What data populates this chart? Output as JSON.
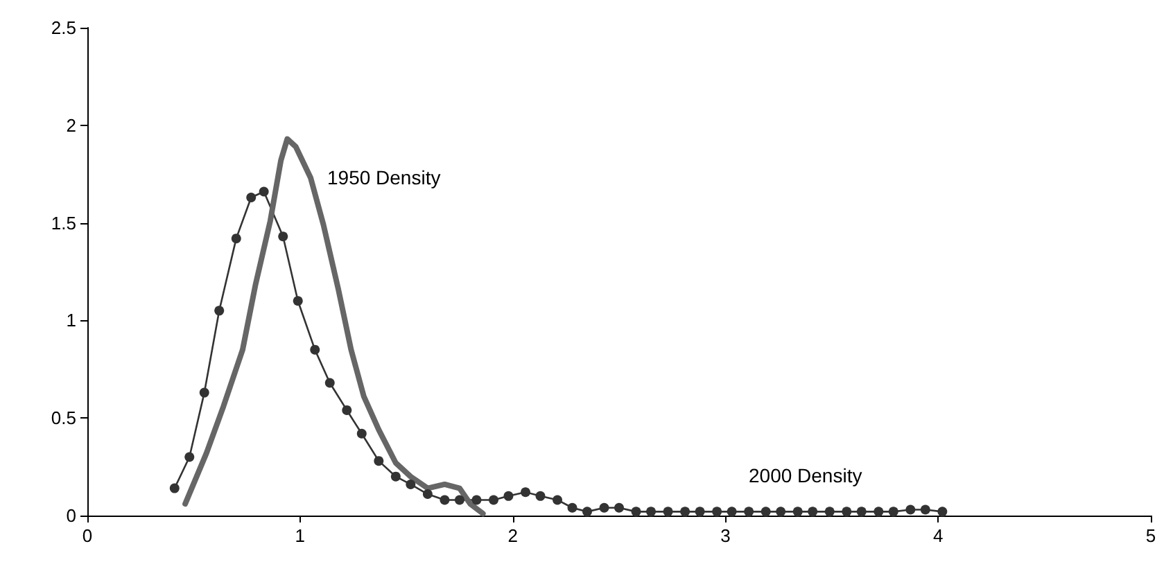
{
  "chart_data": {
    "type": "line",
    "xlim": [
      0,
      5
    ],
    "xticks": [
      0,
      1,
      2,
      3,
      4,
      5
    ],
    "ylim": [
      0,
      2.5
    ],
    "yticks": [
      0,
      0.5,
      1,
      1.5,
      2,
      2.5
    ],
    "grid": false,
    "series": [
      {
        "color": "#333333",
        "marker": "circle",
        "x": [
          0.41,
          0.48,
          0.55,
          0.62,
          0.7,
          0.77,
          0.83,
          0.92,
          0.99,
          1.07,
          1.14,
          1.22,
          1.29,
          1.37,
          1.45,
          1.52,
          1.6,
          1.68,
          1.75,
          1.83,
          1.91,
          1.98,
          2.06,
          2.13,
          2.21,
          2.28,
          2.35,
          2.43,
          2.5,
          2.58,
          2.65,
          2.73,
          2.81,
          2.88,
          2.96,
          3.03,
          3.11,
          3.19,
          3.26,
          3.34,
          3.41,
          3.49,
          3.57,
          3.64,
          3.72,
          3.79,
          3.87,
          3.94,
          4.02
        ],
        "values": [
          0.14,
          0.3,
          0.63,
          1.05,
          1.42,
          1.63,
          1.66,
          1.43,
          1.1,
          0.85,
          0.68,
          0.54,
          0.42,
          0.28,
          0.2,
          0.16,
          0.11,
          0.08,
          0.08,
          0.08,
          0.08,
          0.1,
          0.12,
          0.1,
          0.08,
          0.04,
          0.02,
          0.04,
          0.04,
          0.02,
          0.02,
          0.02,
          0.02,
          0.02,
          0.02,
          0.02,
          0.02,
          0.02,
          0.02,
          0.02,
          0.02,
          0.02,
          0.02,
          0.02,
          0.02,
          0.02,
          0.03,
          0.03,
          0.02
        ]
      },
      {
        "color": "#666666",
        "marker": "none",
        "x": [
          0.46,
          0.56,
          0.64,
          0.73,
          0.79,
          0.86,
          0.91,
          0.94,
          0.98,
          1.05,
          1.11,
          1.18,
          1.24,
          1.3,
          1.37,
          1.45,
          1.52,
          1.6,
          1.68,
          1.75,
          1.8,
          1.86
        ],
        "values": [
          0.06,
          0.32,
          0.56,
          0.85,
          1.18,
          1.51,
          1.82,
          1.93,
          1.89,
          1.73,
          1.49,
          1.16,
          0.85,
          0.61,
          0.44,
          0.27,
          0.2,
          0.14,
          0.16,
          0.14,
          0.06,
          0.01
        ]
      }
    ],
    "annotations": [
      "1950 Density",
      "2000 Density"
    ]
  }
}
